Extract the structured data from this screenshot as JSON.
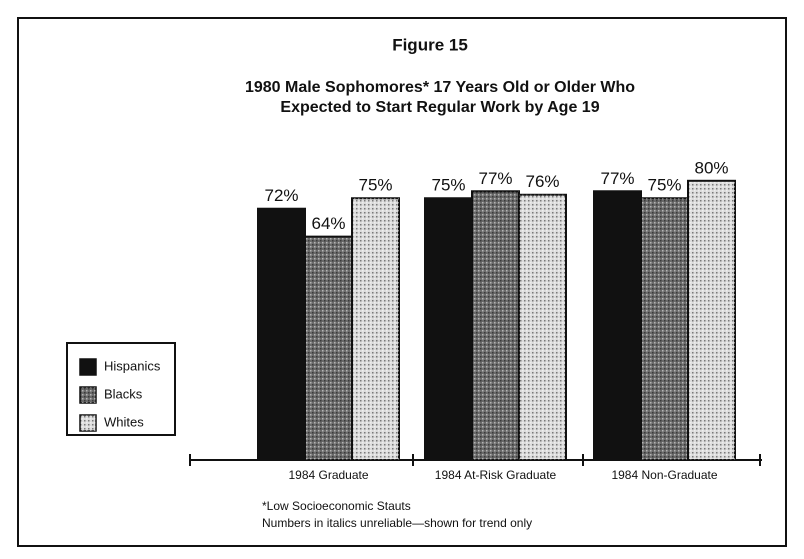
{
  "chart_data": {
    "type": "bar",
    "title": "Figure 15",
    "subtitle": [
      "1980 Male Sophomores* 17 Years Old or Older Who",
      "Expected to Start Regular Work by Age 19"
    ],
    "categories": [
      "1984 Graduate",
      "1984 At-Risk Graduate",
      "1984 Non-Graduate"
    ],
    "series": [
      {
        "name": "Hispanics",
        "color": "#111111",
        "values": [
          72,
          75,
          77
        ],
        "value_labels": [
          "72%",
          "75%",
          "77%"
        ]
      },
      {
        "name": "Blacks",
        "color": "#6a6a6a",
        "values": [
          64,
          77,
          75
        ],
        "value_labels": [
          "64%",
          "77%",
          "75%"
        ]
      },
      {
        "name": "Whites",
        "color": "#dcdcdc",
        "values": [
          75,
          76,
          80
        ],
        "value_labels": [
          "75%",
          "76%",
          "80%"
        ]
      }
    ],
    "footnotes": [
      "*Low Socioeconomic Stauts",
      "Numbers in italics unreliable—shown for trend only"
    ]
  }
}
